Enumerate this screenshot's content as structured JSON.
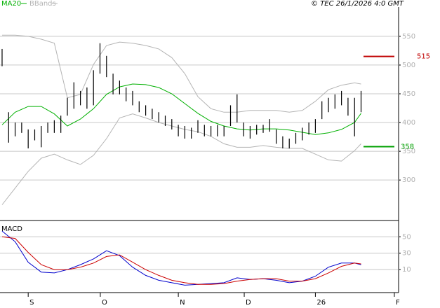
{
  "chart_data": [
    {
      "type": "ohlc",
      "credit": "© TEC 26/1/2026 4:0 GMT",
      "xlim": [
        -0.32,
        60.75
      ],
      "ylim": [
        232,
        601
      ],
      "yticks": [
        300,
        350,
        400,
        450,
        500,
        550
      ],
      "grid": true,
      "bar_color": "#000000",
      "high": [
        528,
        418,
        400,
        400,
        388,
        388,
        394,
        400,
        404,
        412,
        443,
        470,
        455,
        461,
        491,
        538,
        516,
        485,
        473,
        461,
        455,
        437,
        430,
        424,
        418,
        412,
        406,
        396,
        394,
        391,
        404,
        396,
        394,
        396,
        394,
        430,
        449,
        400,
        394,
        396,
        396,
        406,
        388,
        376,
        372,
        382,
        391,
        400,
        406,
        437,
        443,
        449,
        455,
        443,
        443,
        455
      ],
      "low": [
        498,
        365,
        376,
        382,
        355,
        369,
        357,
        382,
        382,
        382,
        412,
        424,
        430,
        424,
        430,
        485,
        479,
        449,
        449,
        437,
        430,
        418,
        412,
        406,
        400,
        394,
        388,
        376,
        372,
        372,
        382,
        376,
        376,
        376,
        376,
        394,
        400,
        376,
        372,
        379,
        382,
        384,
        363,
        355,
        355,
        363,
        369,
        379,
        382,
        406,
        418,
        424,
        430,
        412,
        376,
        418
      ],
      "series": [
        {
          "name": "MA20",
          "color": "#00b000",
          "x": [
            0,
            2,
            4,
            6,
            8,
            10,
            12,
            14,
            16,
            18,
            20,
            22,
            24,
            26,
            28,
            30,
            32,
            34,
            36,
            38,
            40,
            42,
            44,
            46,
            48,
            50,
            52,
            54,
            55
          ],
          "values": [
            396,
            418,
            428,
            428,
            415,
            394,
            406,
            424,
            449,
            462,
            467,
            466,
            461,
            450,
            433,
            416,
            402,
            394,
            389,
            387,
            389,
            389,
            387,
            383,
            379,
            382,
            388,
            400,
            416
          ]
        },
        {
          "name": "BBands",
          "color": "#b4b4b4",
          "x": [
            0,
            2,
            4,
            6,
            8,
            10,
            12,
            14,
            16,
            18,
            20,
            22,
            24,
            26,
            28,
            30,
            32,
            34,
            36,
            38,
            40,
            42,
            44,
            46,
            48,
            50,
            52,
            54,
            55
          ],
          "values": [
            552,
            552,
            550,
            545,
            538,
            443,
            449,
            501,
            534,
            540,
            538,
            534,
            528,
            513,
            485,
            445,
            424,
            418,
            418,
            421,
            421,
            421,
            418,
            421,
            437,
            457,
            465,
            469,
            467
          ],
          "lower": [
            257,
            286,
            315,
            338,
            345,
            335,
            327,
            343,
            372,
            408,
            415,
            408,
            400,
            394,
            388,
            384,
            376,
            363,
            357,
            357,
            360,
            357,
            355,
            355,
            345,
            335,
            333,
            351,
            363
          ]
        }
      ],
      "reference_lines": [
        {
          "value": 515,
          "color": "#c00000"
        },
        {
          "value": 358,
          "color": "#00a000"
        }
      ]
    },
    {
      "type": "line",
      "title": "MACD",
      "xlim": [
        -0.32,
        60.75
      ],
      "ylim": [
        -18,
        69
      ],
      "yticks": [
        10,
        30,
        50
      ],
      "grid": true,
      "xticks": [
        {
          "value": 4,
          "label": "S"
        },
        {
          "value": 15.05,
          "label": "O"
        },
        {
          "value": 27,
          "label": "N"
        },
        {
          "value": 37.1,
          "label": "D"
        },
        {
          "value": 48,
          "label": "26"
        },
        {
          "value": 60.1,
          "label": "F"
        }
      ],
      "series": [
        {
          "color": "#0000cc",
          "x": [
            0,
            2,
            4,
            6,
            8,
            10,
            12,
            14,
            16,
            18,
            20,
            22,
            24,
            26,
            28,
            30,
            32,
            34,
            36,
            38,
            40,
            42,
            44,
            46,
            48,
            50,
            52,
            54,
            55
          ],
          "values": [
            57,
            44,
            19,
            7,
            6,
            10,
            16,
            23,
            33,
            27,
            13,
            3,
            -3,
            -6,
            -9,
            -8,
            -7,
            -6,
            0,
            -2,
            -1,
            -3,
            -6,
            -4,
            2,
            13,
            18,
            18,
            16
          ]
        },
        {
          "color": "#cc0000",
          "x": [
            0,
            2,
            4,
            6,
            8,
            10,
            12,
            14,
            16,
            18,
            20,
            22,
            24,
            26,
            28,
            30,
            32,
            34,
            36,
            38,
            40,
            42,
            44,
            46,
            48,
            50,
            52,
            54,
            55
          ],
          "values": [
            50,
            48,
            31,
            16,
            10,
            10,
            13,
            18,
            26,
            28,
            19,
            10,
            3,
            -3,
            -6,
            -8,
            -8,
            -7,
            -4,
            -2,
            -1,
            -1,
            -4,
            -4,
            -1,
            6,
            14,
            18,
            17
          ]
        }
      ]
    }
  ]
}
